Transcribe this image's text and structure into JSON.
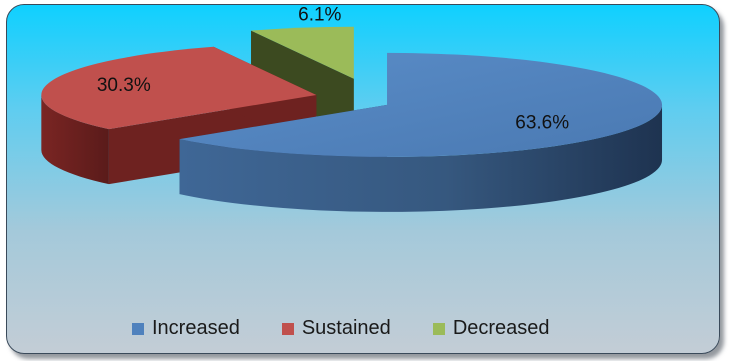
{
  "chart_data": {
    "type": "pie",
    "style": "3d-exploded",
    "categories": [
      "Increased",
      "Sustained",
      "Decreased"
    ],
    "values": [
      63.6,
      30.3,
      6.1
    ],
    "labels": [
      "63.6%",
      "30.3%",
      "6.1%"
    ],
    "colors": [
      "#4f81bd",
      "#c0504d",
      "#9bbb59"
    ],
    "legend_position": "bottom"
  }
}
